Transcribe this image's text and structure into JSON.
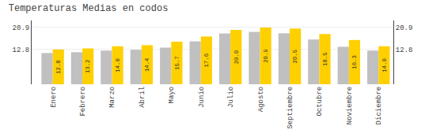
{
  "chart_data": {
    "type": "bar",
    "title": "Temperaturas Medias en codos",
    "categories": [
      "Enero",
      "Febrero",
      "Marzo",
      "Abril",
      "Mayo",
      "Junio",
      "Julio",
      "Agosto",
      "Septiembre",
      "Octubre",
      "Noviembre",
      "Diciembre"
    ],
    "series": [
      {
        "color": "#C0C0C0",
        "values": [
          11.5,
          11.8,
          12.4,
          12.7,
          13.5,
          15.8,
          18.7,
          19.3,
          18.8,
          16.5,
          13.8,
          12.4
        ]
      },
      {
        "color": "#FFD000",
        "values": [
          12.8,
          13.2,
          14.0,
          14.4,
          15.7,
          17.6,
          20.0,
          20.9,
          20.5,
          18.5,
          16.3,
          14.0
        ],
        "value_labels": [
          "12.8",
          "13.2",
          "14.0",
          "14.4",
          "15.7",
          "17.6",
          "20.0",
          "20.9",
          "20.5",
          "18.5",
          "16.3",
          "14.0"
        ],
        "data_labels": true
      }
    ],
    "ylim": [
      0,
      23.5
    ],
    "yticks": [
      12.8,
      20.9
    ],
    "y2lim": [
      0,
      23.5
    ],
    "y2ticks": [
      12.8,
      20.9
    ],
    "grid": true
  }
}
